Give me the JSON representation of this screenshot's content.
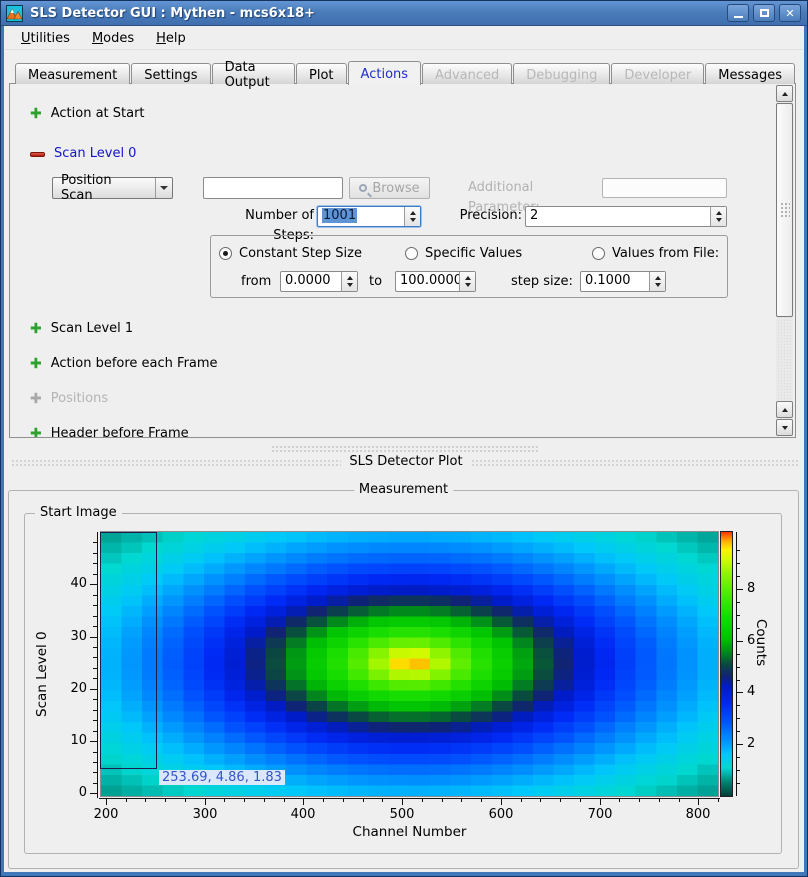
{
  "window": {
    "title": "SLS Detector GUI : Mythen - mcs6x18+",
    "icon": "mountain-app-icon",
    "controls": {
      "minimize": "minimize",
      "maximize": "maximize",
      "close": "close"
    }
  },
  "menu": {
    "items": [
      {
        "label": "Utilities"
      },
      {
        "label": "Modes"
      },
      {
        "label": "Help"
      }
    ]
  },
  "tabs": [
    {
      "label": "Measurement",
      "state": "normal"
    },
    {
      "label": "Settings",
      "state": "normal"
    },
    {
      "label": "Data Output",
      "state": "normal"
    },
    {
      "label": "Plot",
      "state": "normal"
    },
    {
      "label": "Actions",
      "state": "active"
    },
    {
      "label": "Advanced",
      "state": "disabled"
    },
    {
      "label": "Debugging",
      "state": "disabled"
    },
    {
      "label": "Developer",
      "state": "disabled"
    },
    {
      "label": "Messages",
      "state": "normal",
      "align": "right"
    }
  ],
  "actions": {
    "items": [
      {
        "icon": "plus-green",
        "label": "Action at Start",
        "state": "normal"
      },
      {
        "icon": "minus-red",
        "label": "Scan Level 0",
        "state": "expanded"
      },
      {
        "icon": "plus-green",
        "label": "Scan Level 1",
        "state": "normal"
      },
      {
        "icon": "plus-green",
        "label": "Action before each Frame",
        "state": "normal"
      },
      {
        "icon": "plus-gray",
        "label": "Positions",
        "state": "disabled"
      },
      {
        "icon": "plus-green",
        "label": "Header before Frame",
        "state": "normal"
      }
    ],
    "scan0": {
      "mode_value": "Position Scan",
      "script_value": "",
      "browse_label": "Browse",
      "additional_label": "Additional Parameter:",
      "additional_value": "",
      "steps_label": "Number of Steps:",
      "steps_value": "1001",
      "precision_label": "Precision:",
      "precision_value": "2",
      "step_options": [
        "Constant Step Size",
        "Specific Values",
        "Values from File:"
      ],
      "step_option_selected": 0,
      "from_label": "from",
      "from_value": "0.0000",
      "to_label": "to",
      "to_value": "100.0000",
      "stepsize_label": "step size:",
      "stepsize_value": "0.1000"
    }
  },
  "plot_dock": {
    "title": "SLS Detector Plot",
    "measurement_title": "Measurement",
    "start_image_title": "Start Image"
  },
  "chart_data": {
    "type": "heatmap",
    "xlabel": "Channel Number",
    "ylabel": "Scan Level 0",
    "colorbar_label": "Counts",
    "x_range": [
      195,
      820
    ],
    "y_range": [
      -0.5,
      50
    ],
    "value_range": [
      0,
      10.2
    ],
    "x_ticks": [
      200,
      300,
      400,
      500,
      600,
      700,
      800
    ],
    "x_minor_step": 20,
    "y_ticks": [
      0,
      10,
      20,
      30,
      40
    ],
    "y_minor_step": 2,
    "colorbar_ticks": [
      2,
      4,
      6,
      8
    ],
    "colorbar_minor_step": 0.5,
    "grid_cells": [
      30,
      25
    ],
    "peak": {
      "x": 509,
      "y": 25,
      "amplitude": 10.2,
      "rx": 312,
      "ry": 25.3,
      "qa": 0.39,
      "qb": 1.4
    },
    "colormap": [
      [
        0.0,
        "#004038"
      ],
      [
        0.055,
        "#008878"
      ],
      [
        0.105,
        "#00d8d0"
      ],
      [
        0.155,
        "#00c8fa"
      ],
      [
        0.21,
        "#0090ff"
      ],
      [
        0.28,
        "#0052ff"
      ],
      [
        0.35,
        "#0028f4"
      ],
      [
        0.41,
        "#001cc8"
      ],
      [
        0.455,
        "#102470"
      ],
      [
        0.5,
        "#0a4a40"
      ],
      [
        0.55,
        "#009018"
      ],
      [
        0.6,
        "#00c400"
      ],
      [
        0.68,
        "#14dc00"
      ],
      [
        0.76,
        "#46ea00"
      ],
      [
        0.84,
        "#8cf400"
      ],
      [
        0.9,
        "#d2fa00"
      ],
      [
        0.935,
        "#fff200"
      ],
      [
        0.965,
        "#ffb400"
      ],
      [
        1.0,
        "#ff3c00"
      ]
    ],
    "zoom_rect": {
      "x0": 195,
      "x1": 252.6,
      "y0": 4.6,
      "y1": 50
    },
    "tooltip": "253.69, 4.86, 1.83"
  }
}
